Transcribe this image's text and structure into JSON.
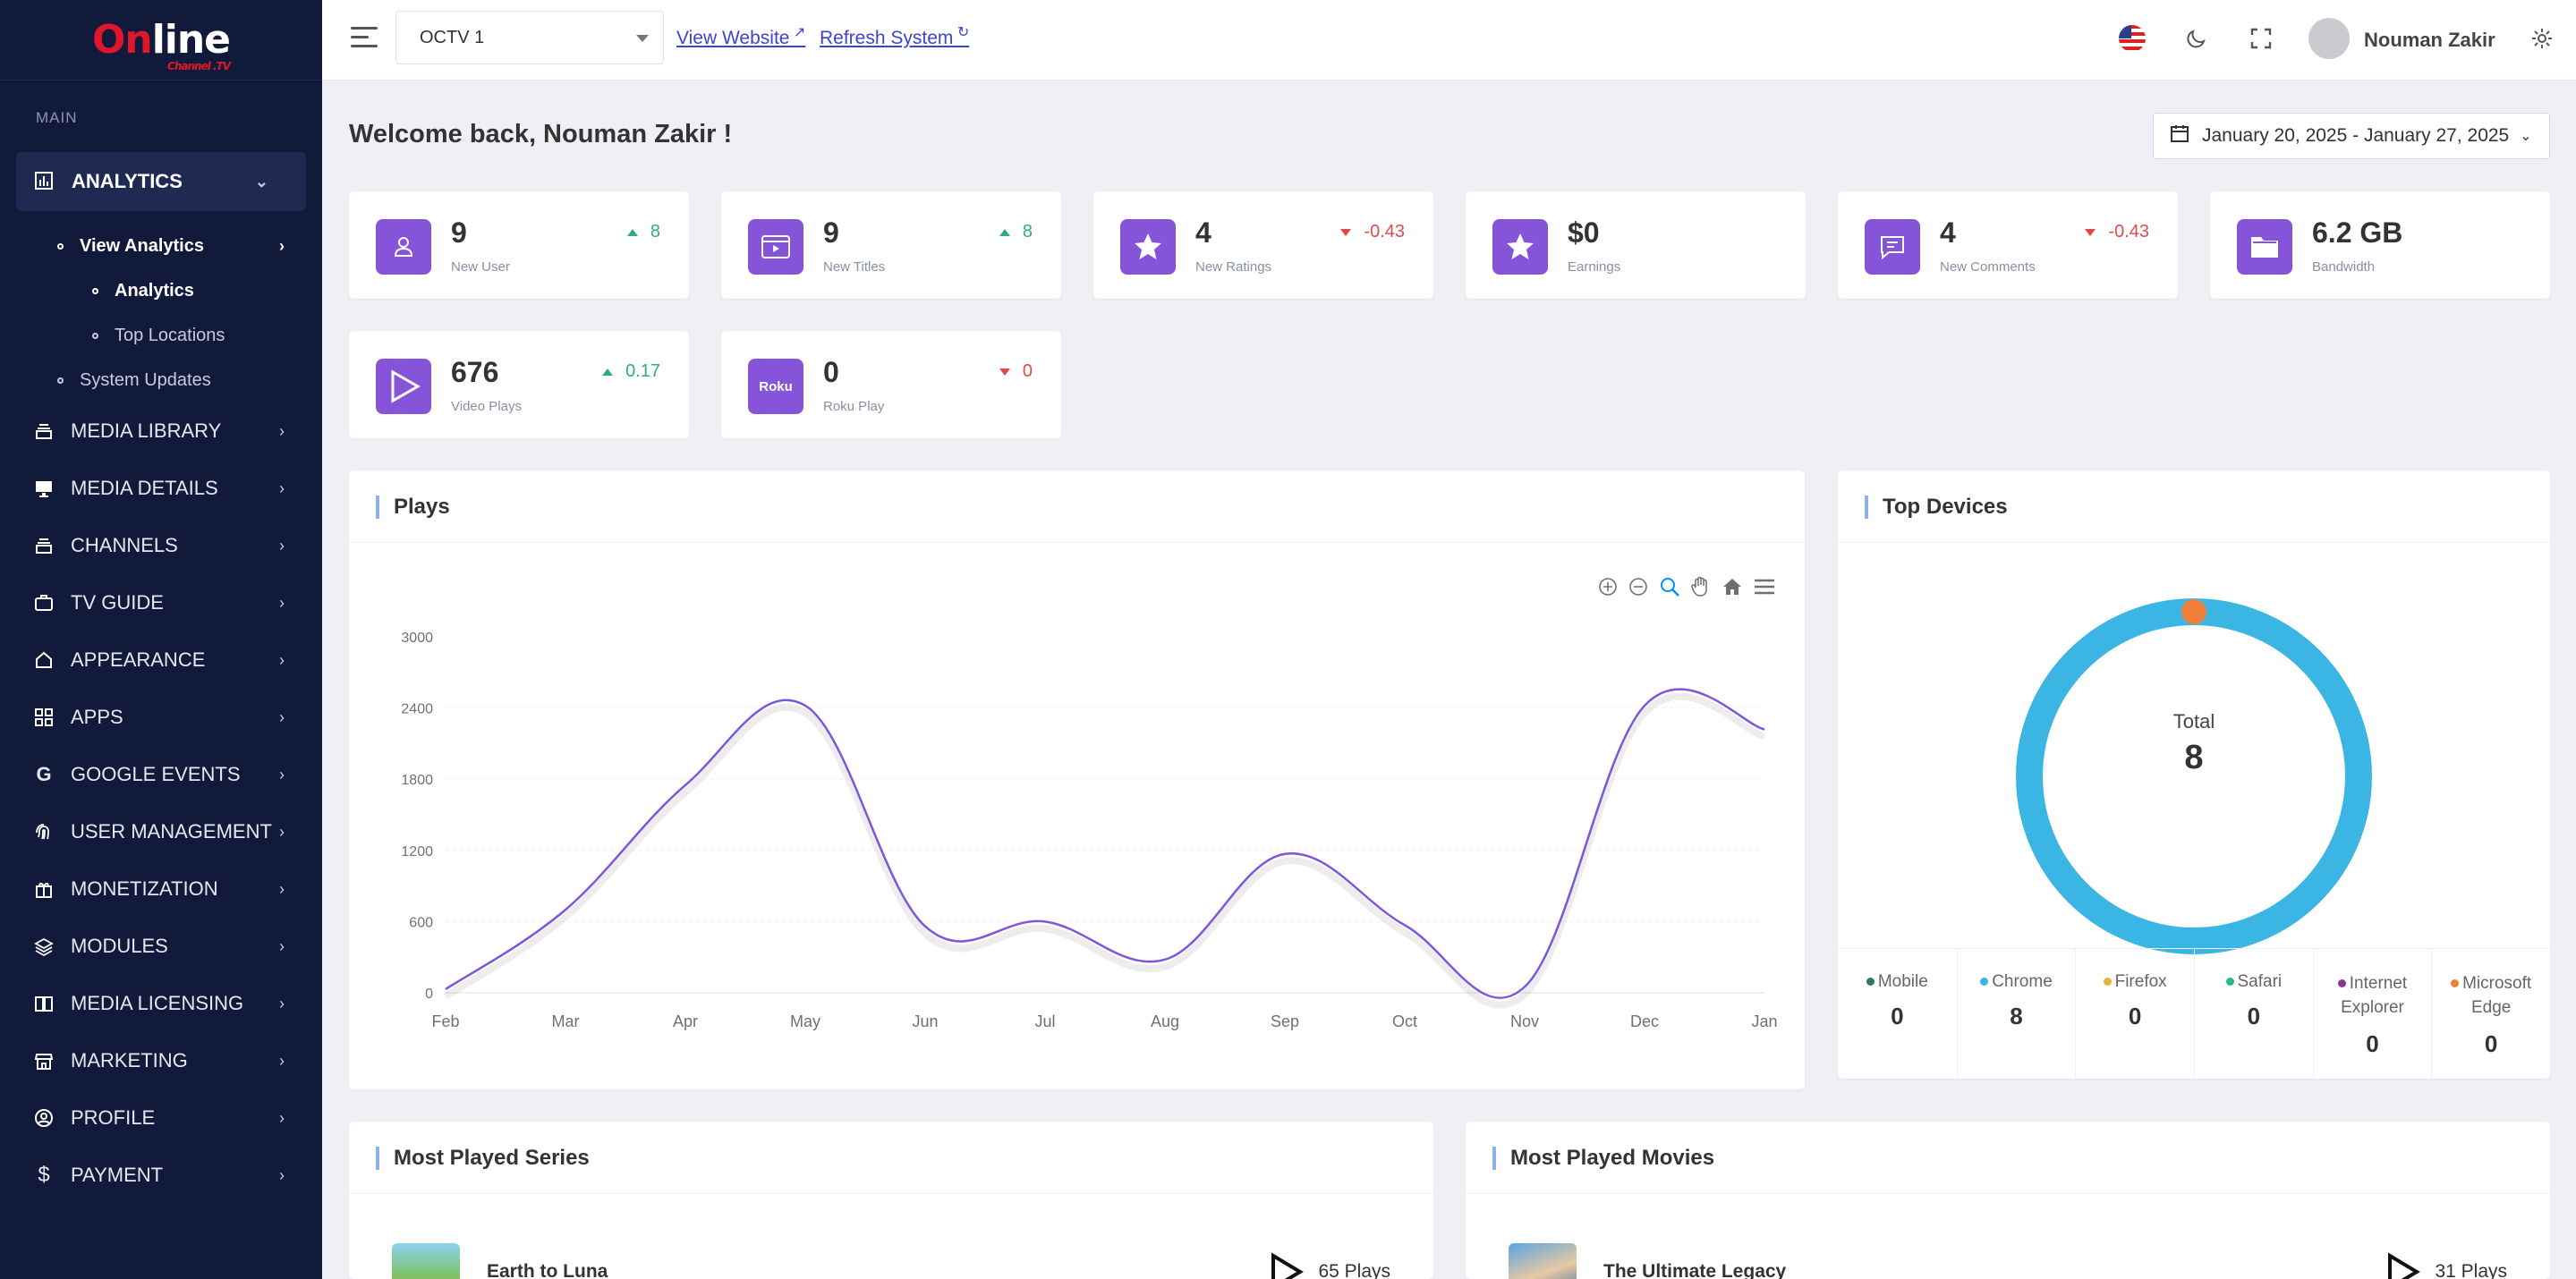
{
  "sidebar": {
    "logo": {
      "brand_o": "On",
      "brand_rest": "line",
      "sub": "Channel .TV"
    },
    "section_label": "MAIN",
    "active_item": {
      "label": "ANALYTICS",
      "icon": "bar-chart-icon"
    },
    "subitems": [
      {
        "label": "View Analytics"
      },
      {
        "label": "Analytics"
      },
      {
        "label": "Top Locations"
      },
      {
        "label": "System Updates"
      }
    ],
    "items": [
      {
        "label": "MEDIA LIBRARY",
        "icon": "library-icon"
      },
      {
        "label": "MEDIA DETAILS",
        "icon": "monitor-icon"
      },
      {
        "label": "CHANNELS",
        "icon": "channels-icon"
      },
      {
        "label": "TV GUIDE",
        "icon": "briefcase-icon"
      },
      {
        "label": "APPEARANCE",
        "icon": "home-icon"
      },
      {
        "label": "APPS",
        "icon": "grid-icon"
      },
      {
        "label": "GOOGLE EVENTS",
        "icon": "google-icon"
      },
      {
        "label": "USER MANAGEMENT",
        "icon": "fingerprint-icon"
      },
      {
        "label": "MONETIZATION",
        "icon": "gift-icon"
      },
      {
        "label": "MODULES",
        "icon": "layers-icon"
      },
      {
        "label": "MEDIA LICENSING",
        "icon": "book-icon"
      },
      {
        "label": "MARKETING",
        "icon": "store-icon"
      },
      {
        "label": "PROFILE",
        "icon": "user-circle-icon"
      },
      {
        "label": "PAYMENT",
        "icon": "dollar-icon"
      }
    ]
  },
  "topbar": {
    "channel_select": "OCTV 1",
    "view_website": "View Website",
    "refresh_system": "Refresh System",
    "username": "Nouman Zakir"
  },
  "main": {
    "welcome": "Welcome back, Nouman Zakir !",
    "date_range": "January 20, 2025 - January 27, 2025"
  },
  "stats": [
    {
      "value": "9",
      "label": "New User",
      "change": "8",
      "direction": "up",
      "icon": "user-icon"
    },
    {
      "value": "9",
      "label": "New Titles",
      "change": "8",
      "direction": "up",
      "icon": "video-window-icon"
    },
    {
      "value": "4",
      "label": "New Ratings",
      "change": "-0.43",
      "direction": "down",
      "icon": "star-icon"
    },
    {
      "value": "$0",
      "label": "Earnings",
      "change": "",
      "direction": "none",
      "icon": "star-icon"
    },
    {
      "value": "4",
      "label": "New Comments",
      "change": "-0.43",
      "direction": "down",
      "icon": "comment-icon"
    },
    {
      "value": "6.2 GB",
      "label": "Bandwidth",
      "change": "",
      "direction": "none",
      "icon": "folder-icon"
    },
    {
      "value": "676",
      "label": "Video Plays",
      "change": "0.17",
      "direction": "up",
      "icon": "play-icon"
    },
    {
      "value": "0",
      "label": "Roku Play",
      "change": "0",
      "direction": "down",
      "icon": "roku-icon",
      "icon_text": "Roku"
    }
  ],
  "plays_panel": {
    "title": "Plays"
  },
  "chart_data": {
    "type": "line",
    "title": "Plays",
    "categories": [
      "Feb",
      "Mar",
      "Apr",
      "May",
      "Jun",
      "Jul",
      "Aug",
      "Sep",
      "Oct",
      "Nov",
      "Dec",
      "Jan"
    ],
    "series": [
      {
        "values": [
          30,
          700,
          1750,
          2420,
          560,
          600,
          280,
          1170,
          570,
          50,
          2420,
          2220
        ]
      }
    ],
    "yticks": [
      0,
      600,
      1200,
      1800,
      2400,
      3000
    ],
    "ylim": [
      0,
      3000
    ],
    "color": "#7f56d9",
    "grid": true
  },
  "top_devices": {
    "title": "Top Devices",
    "total_label": "Total",
    "total_value": "8",
    "legend": [
      {
        "name": "Mobile",
        "value": "0",
        "color": "#2b7a5f"
      },
      {
        "name": "Chrome",
        "value": "8",
        "color": "#3bb5e3"
      },
      {
        "name": "Firefox",
        "value": "0",
        "color": "#e6b43c"
      },
      {
        "name": "Safari",
        "value": "0",
        "color": "#2bb58a"
      },
      {
        "name": "Internet Explorer",
        "value": "0",
        "color": "#8a3b8f"
      },
      {
        "name": "Microsoft Edge",
        "value": "0",
        "color": "#f07f3c"
      }
    ]
  },
  "most_played_series": {
    "title": "Most Played Series",
    "items": [
      {
        "title": "Earth to Luna",
        "plays": "65 Plays"
      }
    ]
  },
  "most_played_movies": {
    "title": "Most Played Movies",
    "items": [
      {
        "title": "The Ultimate Legacy",
        "plays": "31 Plays"
      }
    ]
  }
}
